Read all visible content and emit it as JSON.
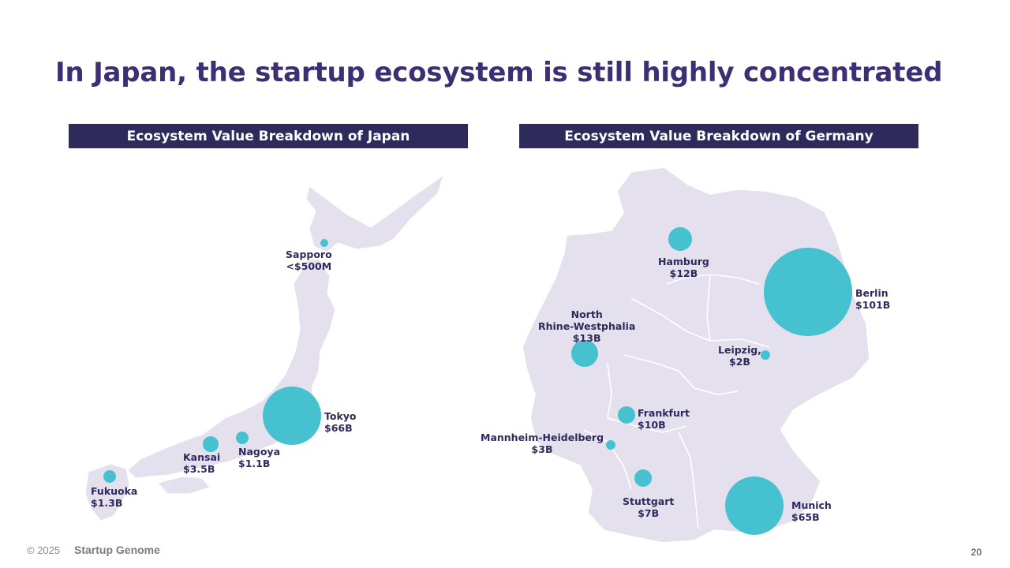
{
  "title": "In Japan, the startup ecosystem is still highly concentrated",
  "colors": {
    "title": "#3d2f73",
    "header_bg": "#2f2a5c",
    "land": "#e4e0ee",
    "bubble": "#45c1cf",
    "label": "#2f2a5c"
  },
  "japan": {
    "header": "Ecosystem Value Breakdown of Japan",
    "cities": [
      {
        "name": "Sapporo",
        "value": "<$500M"
      },
      {
        "name": "Tokyo",
        "value": "$66B"
      },
      {
        "name": "Nagoya",
        "value": "$1.1B"
      },
      {
        "name": "Kansai",
        "value": "$3.5B"
      },
      {
        "name": "Fukuoka",
        "value": "$1.3B"
      }
    ]
  },
  "germany": {
    "header": "Ecosystem Value Breakdown of Germany",
    "cities": [
      {
        "name": "Hamburg",
        "value": "$12B"
      },
      {
        "name": "Berlin",
        "value": "$101B"
      },
      {
        "name": "North",
        "name2": "Rhine-Westphalia",
        "value": "$13B"
      },
      {
        "name": "Leipzig,",
        "value": "$2B"
      },
      {
        "name": "Frankfurt",
        "value": "$10B"
      },
      {
        "name": "Mannheim-Heidelberg",
        "value": "$3B"
      },
      {
        "name": "Stuttgart",
        "value": "$7B"
      },
      {
        "name": "Munich",
        "value": "$65B"
      }
    ]
  },
  "footer": {
    "copyright": "© 2025",
    "brand": "Startup Genome",
    "page": "20"
  }
}
